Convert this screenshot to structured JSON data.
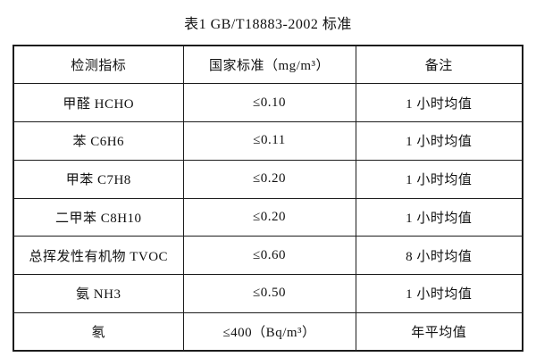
{
  "title": "表1 GB/T18883-2002 标准",
  "colors": {
    "background": "#ffffff",
    "text": "#111111",
    "border": "#1c1c1c"
  },
  "table": {
    "headers": [
      "检测指标",
      "国家标准（mg/m³）",
      "备注"
    ],
    "rows": [
      [
        "甲醛 HCHO",
        "≤0.10",
        "1 小时均值"
      ],
      [
        "苯 C6H6",
        "≤0.11",
        "1 小时均值"
      ],
      [
        "甲苯 C7H8",
        "≤0.20",
        "1 小时均值"
      ],
      [
        "二甲苯 C8H10",
        "≤0.20",
        "1 小时均值"
      ],
      [
        "总挥发性有机物 TVOC",
        "≤0.60",
        "8 小时均值"
      ],
      [
        "氨 NH3",
        "≤0.50",
        "1 小时均值"
      ],
      [
        "氡",
        "≤400（Bq/m³）",
        "年平均值"
      ]
    ]
  },
  "chart_data": {
    "type": "table",
    "title": "表1 GB/T18883-2002 标准",
    "columns": [
      "检测指标",
      "国家标准（mg/m³）",
      "备注"
    ],
    "rows": [
      [
        "甲醛 HCHO",
        "≤0.10",
        "1 小时均值"
      ],
      [
        "苯 C6H6",
        "≤0.11",
        "1 小时均值"
      ],
      [
        "甲苯 C7H8",
        "≤0.20",
        "1 小时均值"
      ],
      [
        "二甲苯 C8H10",
        "≤0.20",
        "1 小时均值"
      ],
      [
        "总挥发性有机物 TVOC",
        "≤0.60",
        "8 小时均值"
      ],
      [
        "氨 NH3",
        "≤0.50",
        "1 小时均值"
      ],
      [
        "氡",
        "≤400（Bq/m³）",
        "年平均值"
      ]
    ]
  }
}
